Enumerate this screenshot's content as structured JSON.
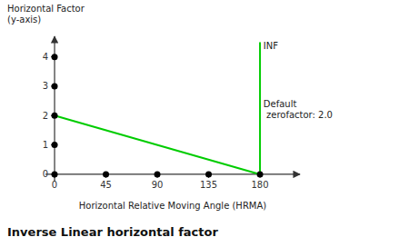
{
  "chart_data": {
    "type": "line",
    "title": "Inverse Linear horizontal factor",
    "x_label": "Horizontal Relative Moving Angle (HRMA)",
    "y_label": "Horizontal Factor\n(y-axis)",
    "xlim": [
      -8,
      215
    ],
    "ylim": [
      -0.25,
      4.7
    ],
    "xticks": [
      0,
      45,
      90,
      135,
      180
    ],
    "yticks": [
      0,
      1,
      2,
      3,
      4
    ],
    "grid": false,
    "series": [
      {
        "type": "line",
        "color": "#00cc00",
        "x": [
          0,
          180
        ],
        "values": [
          2.0,
          0.0
        ]
      },
      {
        "type": "line",
        "color": "#00cc00",
        "x": [
          180,
          180
        ],
        "values": [
          0.0,
          4.5
        ]
      },
      {
        "type": "scatter",
        "color": "#000000",
        "x": [
          0,
          0,
          0,
          0,
          0,
          45,
          90,
          135,
          180
        ],
        "values": [
          0,
          1,
          2,
          3,
          4,
          0,
          0,
          0,
          0
        ]
      }
    ],
    "annotations": [
      {
        "text": "INF",
        "x": 183,
        "y": 4.55
      },
      {
        "text": "Default\n zerofactor: 2.0",
        "x": 183,
        "y": 2.2
      }
    ]
  }
}
